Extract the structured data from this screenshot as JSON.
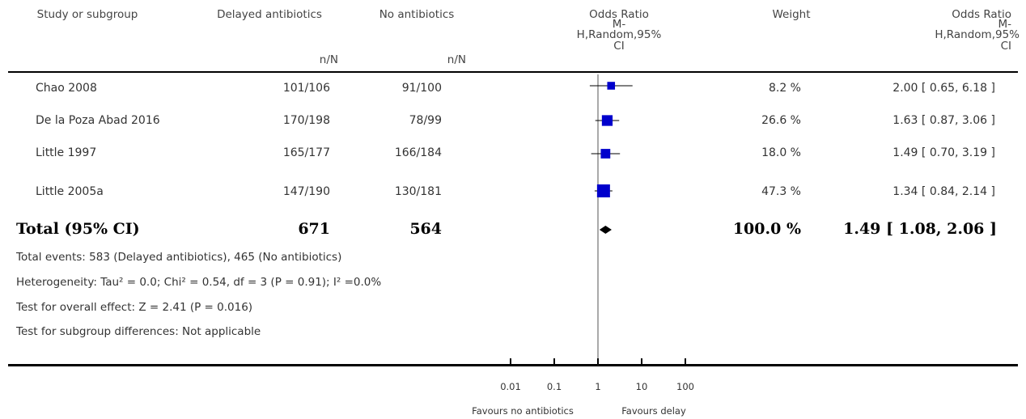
{
  "headers": {
    "study": "Study or subgroup",
    "delayed": "Delayed antibiotics",
    "delayed_sub": "n/N",
    "none": "No antibiotics",
    "none_sub": "n/N",
    "or_line1": "Odds Ratio",
    "or_line2": "M-",
    "or_line3": "H,Random,95%",
    "or_line4": "CI",
    "weight": "Weight",
    "or2_line1": "Odds Ratio",
    "or2_line2": "M-",
    "or2_line3": "H,Random,95%",
    "or2_line4": "CI"
  },
  "notes": {
    "events": "Total events: 583 (Delayed antibiotics), 465 (No antibiotics)",
    "heterogeneity": "Heterogeneity: Tau² = 0.0; Chi² = 0.54, df = 3 (P = 0.91); I² =0.0%",
    "overall": "Test for overall effect: Z = 2.41 (P = 0.016)",
    "subgroup": "Test for subgroup differences: Not applicable"
  },
  "chart_data": {
    "type": "forest",
    "scale": "log",
    "axis_ticks": [
      0.01,
      0.1,
      1,
      10,
      100
    ],
    "axis_tick_labels": [
      "0.01",
      "0.1",
      "1",
      "10",
      "100"
    ],
    "favours_left": "Favours no antibiotics",
    "favours_right": "Favours delay",
    "studies": [
      {
        "name": "Chao 2008",
        "delayed": "101/106",
        "none": "91/100",
        "weight": "8.2 %",
        "weight_value": 8.2,
        "or": 2.0,
        "lo": 0.65,
        "hi": 6.18,
        "or_text": "2.00 [ 0.65, 6.18 ]"
      },
      {
        "name": "De la Poza Abad 2016",
        "delayed": "170/198",
        "none": "78/99",
        "weight": "26.6 %",
        "weight_value": 26.6,
        "or": 1.63,
        "lo": 0.87,
        "hi": 3.06,
        "or_text": "1.63 [ 0.87, 3.06 ]"
      },
      {
        "name": "Little 1997",
        "delayed": "165/177",
        "none": "166/184",
        "weight": "18.0 %",
        "weight_value": 18.0,
        "or": 1.49,
        "lo": 0.7,
        "hi": 3.19,
        "or_text": "1.49 [ 0.70, 3.19 ]"
      },
      {
        "name": "Little 2005a",
        "delayed": "147/190",
        "none": "130/181",
        "weight": "47.3 %",
        "weight_value": 47.3,
        "or": 1.34,
        "lo": 0.84,
        "hi": 2.14,
        "or_text": "1.34 [ 0.84, 2.14 ]"
      }
    ],
    "total": {
      "name": "Total (95% CI)",
      "delayed": "671",
      "none": "564",
      "weight": "100.0 %",
      "or": 1.49,
      "lo": 1.08,
      "hi": 2.06,
      "or_text": "1.49 [ 1.08, 2.06 ]"
    },
    "colors": {
      "marker": "#0000cc",
      "line": "#000000"
    }
  }
}
